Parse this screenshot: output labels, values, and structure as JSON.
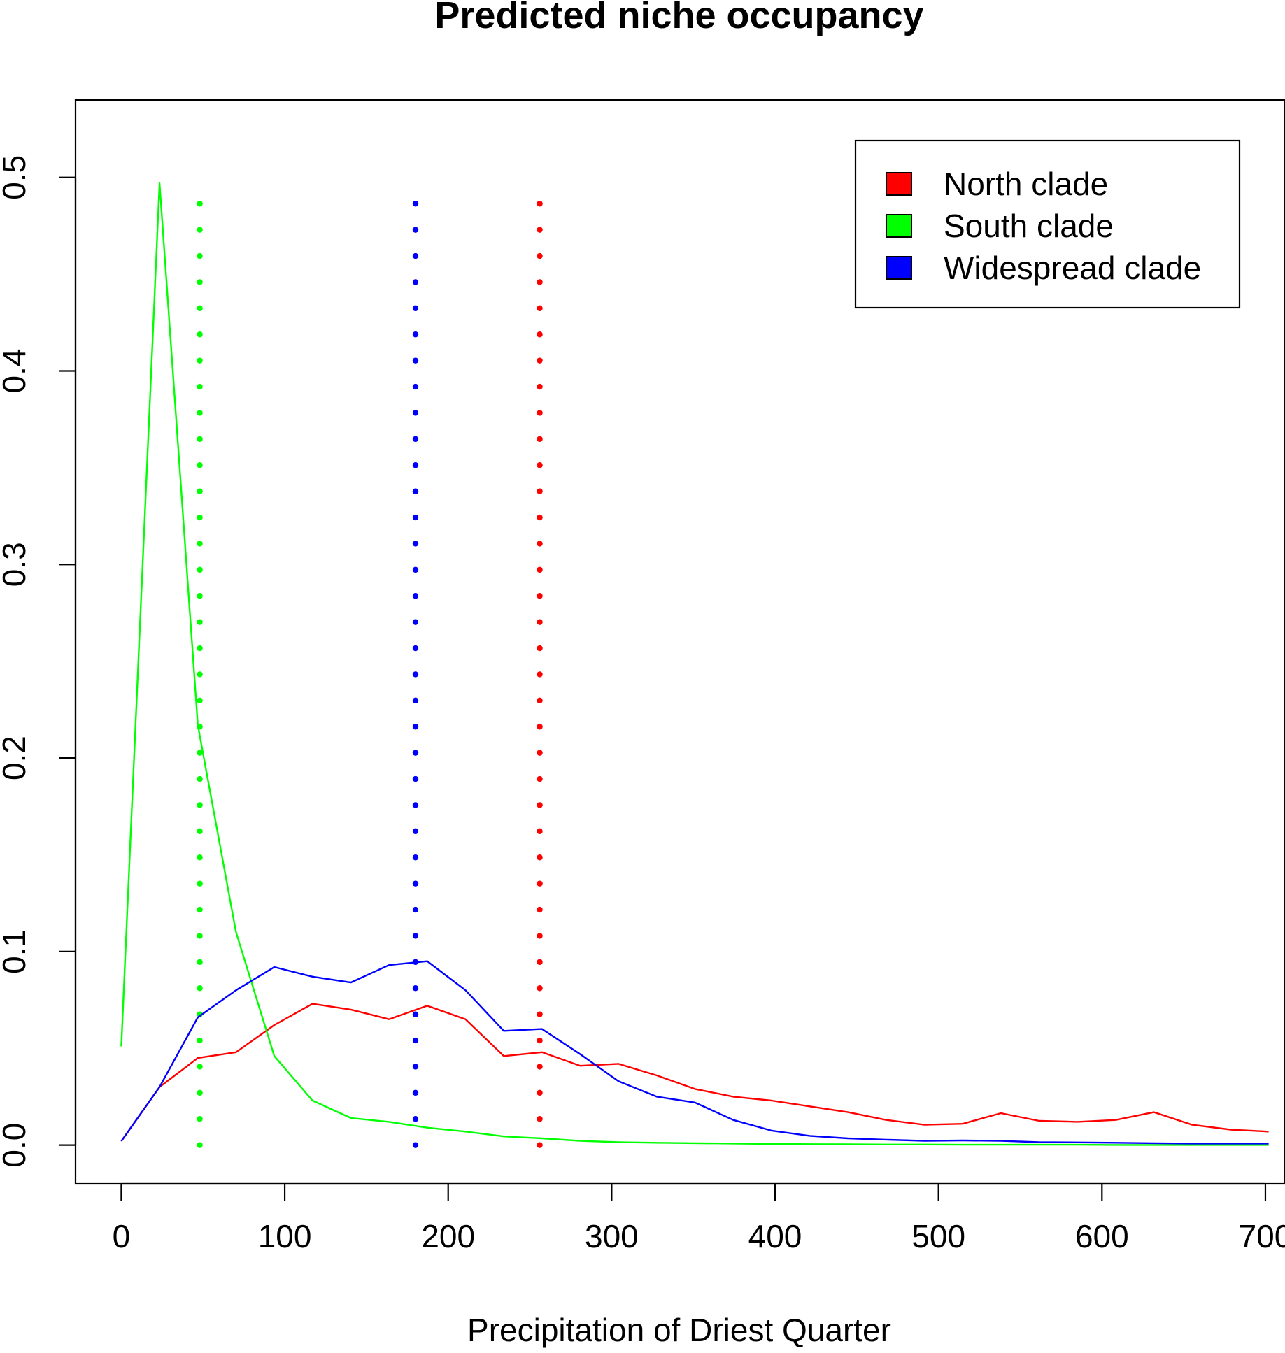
{
  "chart_data": {
    "type": "line",
    "title": "Predicted niche occupancy",
    "xlabel": "Precipitation of Driest Quarter",
    "ylabel": "",
    "xlim": [
      -28,
      712
    ],
    "ylim": [
      -0.02,
      0.54
    ],
    "xticks": [
      0,
      100,
      200,
      300,
      400,
      500,
      600,
      700
    ],
    "xtick_labels": [
      "0",
      "100",
      "200",
      "300",
      "400",
      "500",
      "600",
      "700"
    ],
    "yticks": [
      0.0,
      0.1,
      0.2,
      0.3,
      0.4,
      0.5
    ],
    "ytick_labels": [
      "0.0",
      "0.1",
      "0.2",
      "0.3",
      "0.4",
      "0.5"
    ],
    "grid": false,
    "legend_position": "top-right",
    "series": [
      {
        "name": "North clade",
        "color": "#ff0000",
        "x": [
          0,
          23.4,
          46.8,
          70.2,
          93.6,
          117,
          140.4,
          163.8,
          187.2,
          210.6,
          234,
          257.4,
          280.8,
          304.2,
          327.6,
          351,
          374.4,
          397.8,
          421.2,
          444.6,
          468,
          491.4,
          514.8,
          538.2,
          561.6,
          585,
          608.4,
          631.8,
          655.2,
          678.6,
          702
        ],
        "values": [
          0.002,
          0.03,
          0.045,
          0.048,
          0.062,
          0.073,
          0.07,
          0.065,
          0.072,
          0.065,
          0.046,
          0.048,
          0.041,
          0.042,
          0.036,
          0.029,
          0.025,
          0.023,
          0.02,
          0.017,
          0.013,
          0.0105,
          0.011,
          0.0165,
          0.0125,
          0.012,
          0.013,
          0.017,
          0.0105,
          0.008,
          0.007
        ]
      },
      {
        "name": "South clade",
        "color": "#00ff00",
        "x": [
          0,
          23.4,
          46.8,
          70.2,
          93.6,
          117,
          140.4,
          163.8,
          187.2,
          210.6,
          234,
          257.4,
          280.8,
          304.2,
          327.6,
          351,
          374.4,
          397.8,
          421.2,
          444.6,
          468,
          491.4,
          514.8,
          538.2,
          561.6,
          585,
          608.4,
          631.8,
          655.2,
          678.6,
          702
        ],
        "values": [
          0.051,
          0.497,
          0.217,
          0.11,
          0.046,
          0.023,
          0.014,
          0.012,
          0.009,
          0.007,
          0.0045,
          0.0035,
          0.0022,
          0.0015,
          0.0012,
          0.001,
          0.0008,
          0.0006,
          0.0005,
          0.0004,
          0.0003,
          0.0003,
          0.0002,
          0.0002,
          0.0002,
          0.0002,
          0.0001,
          0.0001,
          0.0001,
          0.0001,
          0.0001
        ]
      },
      {
        "name": "Widespread clade",
        "color": "#0000ff",
        "x": [
          0,
          23.4,
          46.8,
          70.2,
          93.6,
          117,
          140.4,
          163.8,
          187.2,
          210.6,
          234,
          257.4,
          280.8,
          304.2,
          327.6,
          351,
          374.4,
          397.8,
          421.2,
          444.6,
          468,
          491.4,
          514.8,
          538.2,
          561.6,
          585,
          608.4,
          631.8,
          655.2,
          678.6,
          702
        ],
        "values": [
          0.002,
          0.03,
          0.066,
          0.08,
          0.092,
          0.087,
          0.084,
          0.093,
          0.095,
          0.08,
          0.059,
          0.06,
          0.047,
          0.033,
          0.025,
          0.022,
          0.013,
          0.0075,
          0.0048,
          0.0035,
          0.0028,
          0.0022,
          0.0024,
          0.0022,
          0.0015,
          0.0014,
          0.0012,
          0.001,
          0.0008,
          0.0008,
          0.0008
        ]
      }
    ],
    "reference_lines": [
      {
        "series": "South clade",
        "color": "#00ff00",
        "x": 48,
        "style": "dotted"
      },
      {
        "series": "Widespread clade",
        "color": "#0000ff",
        "x": 180,
        "style": "dotted"
      },
      {
        "series": "North clade",
        "color": "#ff0000",
        "x": 256,
        "style": "dotted"
      }
    ]
  }
}
